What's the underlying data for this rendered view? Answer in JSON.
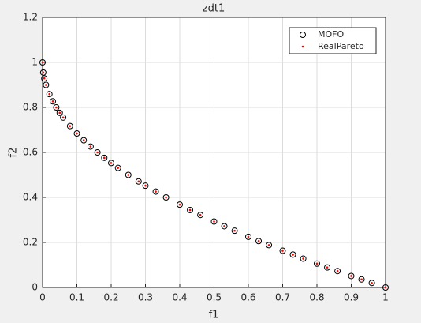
{
  "chart_data": {
    "type": "scatter",
    "title": "zdt1",
    "x_label": "f1",
    "y_label": "f2",
    "xlim": [
      0,
      1
    ],
    "xticks": [
      0,
      0.1,
      0.2,
      0.3,
      0.4,
      0.5,
      0.6,
      0.7,
      0.8,
      0.9,
      1
    ],
    "ylim": [
      0,
      1.2
    ],
    "yticks": [
      0,
      0.2,
      0.4,
      0.6,
      0.8,
      1,
      1.2
    ],
    "grid": true,
    "legend": "top-right",
    "series": [
      {
        "name": "MOFO",
        "color": "#000000",
        "marker": "circle",
        "x": [
          0,
          0.002,
          0.005,
          0.01,
          0.02,
          0.03,
          0.04,
          0.05,
          0.06,
          0.08,
          0.1,
          0.12,
          0.14,
          0.16,
          0.18,
          0.2,
          0.22,
          0.25,
          0.28,
          0.3,
          0.33,
          0.36,
          0.4,
          0.43,
          0.46,
          0.5,
          0.53,
          0.56,
          0.6,
          0.63,
          0.66,
          0.7,
          0.73,
          0.76,
          0.8,
          0.83,
          0.86,
          0.9,
          0.93,
          0.96,
          1
        ],
        "values": [
          1,
          0.955,
          0.929,
          0.9,
          0.859,
          0.827,
          0.8,
          0.776,
          0.755,
          0.717,
          0.684,
          0.654,
          0.626,
          0.6,
          0.576,
          0.553,
          0.531,
          0.5,
          0.471,
          0.452,
          0.426,
          0.4,
          0.368,
          0.344,
          0.322,
          0.293,
          0.272,
          0.252,
          0.225,
          0.206,
          0.188,
          0.163,
          0.146,
          0.128,
          0.106,
          0.089,
          0.073,
          0.051,
          0.036,
          0.02,
          0
        ]
      },
      {
        "name": "RealPareto",
        "color": "#ff0000",
        "marker": "dot",
        "x": [
          0,
          0.002,
          0.005,
          0.01,
          0.02,
          0.03,
          0.04,
          0.05,
          0.06,
          0.08,
          0.1,
          0.12,
          0.14,
          0.16,
          0.18,
          0.2,
          0.22,
          0.25,
          0.28,
          0.3,
          0.33,
          0.36,
          0.4,
          0.43,
          0.46,
          0.5,
          0.53,
          0.56,
          0.6,
          0.63,
          0.66,
          0.7,
          0.73,
          0.76,
          0.8,
          0.83,
          0.86,
          0.9,
          0.93,
          0.96,
          1
        ],
        "values": [
          1,
          0.955,
          0.929,
          0.9,
          0.859,
          0.827,
          0.8,
          0.776,
          0.755,
          0.717,
          0.684,
          0.654,
          0.626,
          0.6,
          0.576,
          0.553,
          0.531,
          0.5,
          0.471,
          0.452,
          0.426,
          0.4,
          0.368,
          0.344,
          0.322,
          0.293,
          0.272,
          0.252,
          0.225,
          0.206,
          0.188,
          0.163,
          0.146,
          0.128,
          0.106,
          0.089,
          0.073,
          0.051,
          0.036,
          0.02,
          0
        ]
      }
    ]
  }
}
